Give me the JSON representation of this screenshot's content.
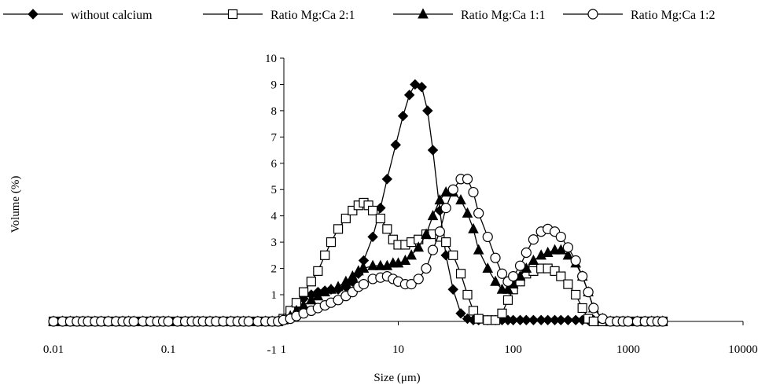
{
  "chart_data": {
    "type": "line",
    "title": "",
    "xlabel": "Size (μm)",
    "ylabel": "Volume (%)",
    "x_scale": "log",
    "xlim": [
      0.01,
      10000
    ],
    "ylim": [
      -1,
      10
    ],
    "x_ticks": [
      0.01,
      0.1,
      1,
      10,
      100,
      1000,
      10000
    ],
    "x_tick_labels": [
      "0.01",
      "0.1",
      "1",
      "10",
      "100",
      "1000",
      "10000"
    ],
    "y_ticks": [
      -1,
      1,
      2,
      3,
      4,
      5,
      6,
      7,
      8,
      9,
      10
    ],
    "y_tick_labels": [
      "-1",
      "1",
      "2",
      "3",
      "4",
      "5",
      "6",
      "7",
      "8",
      "9",
      "10"
    ],
    "grid": false,
    "legend_position": "top",
    "series": [
      {
        "name": "without calcium",
        "marker": "diamond-filled",
        "x": [
          0.01,
          0.012,
          0.014,
          0.016,
          0.018,
          0.02,
          0.023,
          0.026,
          0.03,
          0.035,
          0.04,
          0.045,
          0.05,
          0.06,
          0.07,
          0.08,
          0.09,
          0.1,
          0.12,
          0.14,
          0.16,
          0.18,
          0.2,
          0.23,
          0.26,
          0.3,
          0.35,
          0.4,
          0.45,
          0.5,
          0.6,
          0.7,
          0.8,
          0.9,
          1.0,
          1.15,
          1.3,
          1.5,
          1.75,
          2.0,
          2.3,
          2.6,
          3.0,
          3.5,
          4.0,
          4.5,
          5.0,
          6.0,
          7.0,
          8.0,
          9.5,
          11.0,
          12.5,
          14.0,
          16.0,
          18.0,
          20.0,
          23.0,
          26.0,
          30.0,
          35.0,
          40.0,
          45.0,
          50.0,
          60.0,
          70.0,
          80.0,
          90.0,
          100.0,
          115.0,
          130.0,
          150.0,
          175.0,
          200.0,
          230.0,
          260.0,
          300.0,
          350.0,
          400.0,
          450.0,
          500.0
        ],
        "y": [
          0,
          0,
          0,
          0,
          0,
          0,
          0,
          0,
          0,
          0,
          0,
          0,
          0,
          0,
          0,
          0,
          0,
          0,
          0,
          0,
          0,
          0,
          0,
          0,
          0,
          0,
          0,
          0,
          0,
          0,
          0,
          0,
          0,
          0,
          0.05,
          0.3,
          0.6,
          0.85,
          1.0,
          1.1,
          1.15,
          1.2,
          1.2,
          1.3,
          1.5,
          1.8,
          2.3,
          3.2,
          4.3,
          5.4,
          6.7,
          7.8,
          8.6,
          9.0,
          8.9,
          8.0,
          6.5,
          4.2,
          2.5,
          1.2,
          0.3,
          0.1,
          0.05,
          0.05,
          0.05,
          0.05,
          0.05,
          0.05,
          0.05,
          0.05,
          0.05,
          0.05,
          0.05,
          0.05,
          0.05,
          0.05,
          0.05,
          0.05,
          0.05,
          0.05,
          0.05
        ]
      },
      {
        "name": "Ratio Mg:Ca 2:1",
        "marker": "square-open",
        "x": [
          0.01,
          0.012,
          0.014,
          0.016,
          0.018,
          0.02,
          0.023,
          0.026,
          0.03,
          0.035,
          0.04,
          0.045,
          0.05,
          0.06,
          0.07,
          0.08,
          0.09,
          0.1,
          0.12,
          0.14,
          0.16,
          0.18,
          0.2,
          0.23,
          0.26,
          0.3,
          0.35,
          0.4,
          0.45,
          0.5,
          0.6,
          0.7,
          0.8,
          0.9,
          1.0,
          1.15,
          1.3,
          1.5,
          1.75,
          2.0,
          2.3,
          2.6,
          3.0,
          3.5,
          4.0,
          4.5,
          5.0,
          5.5,
          6.0,
          7.0,
          8.0,
          9.0,
          10.0,
          11.5,
          13.0,
          15.0,
          17.5,
          20.0,
          23.0,
          26.0,
          30.0,
          35.0,
          40.0,
          45.0,
          50.0,
          60.0,
          70.0,
          80.0,
          90.0,
          100.0,
          115.0,
          130.0,
          150.0,
          175.0,
          200.0,
          230.0,
          260.0,
          300.0,
          350.0,
          400.0,
          450.0,
          500.0,
          600.0,
          700.0,
          800.0,
          900.0,
          1000.0,
          1200.0,
          1400.0,
          1600.0,
          1800.0,
          2000.0
        ],
        "y": [
          0,
          0,
          0,
          0,
          0,
          0,
          0,
          0,
          0,
          0,
          0,
          0,
          0,
          0,
          0,
          0,
          0,
          0,
          0,
          0,
          0,
          0,
          0,
          0,
          0,
          0,
          0,
          0,
          0,
          0,
          0,
          0,
          0,
          0,
          0.1,
          0.4,
          0.7,
          1.1,
          1.5,
          1.9,
          2.5,
          3.0,
          3.5,
          3.9,
          4.2,
          4.4,
          4.5,
          4.4,
          4.2,
          3.9,
          3.5,
          3.1,
          2.9,
          2.9,
          3.0,
          3.1,
          3.3,
          3.3,
          3.2,
          3.0,
          2.5,
          1.8,
          1.0,
          0.4,
          0.1,
          0.05,
          0.05,
          0.3,
          0.8,
          1.2,
          1.5,
          1.8,
          1.9,
          2.0,
          2.0,
          1.9,
          1.7,
          1.4,
          1.0,
          0.5,
          0.1,
          0.0,
          0.0,
          0.0,
          0.0,
          0.0,
          0.0,
          0.0,
          0.0,
          0.0,
          0.0,
          0.0
        ]
      },
      {
        "name": "Ratio Mg:Ca 1:1",
        "marker": "triangle-filled",
        "x": [
          0.01,
          0.012,
          0.014,
          0.016,
          0.018,
          0.02,
          0.023,
          0.026,
          0.03,
          0.035,
          0.04,
          0.045,
          0.05,
          0.06,
          0.07,
          0.08,
          0.09,
          0.1,
          0.12,
          0.14,
          0.16,
          0.18,
          0.2,
          0.23,
          0.26,
          0.3,
          0.35,
          0.4,
          0.45,
          0.5,
          0.6,
          0.7,
          0.8,
          0.9,
          1.0,
          1.15,
          1.3,
          1.5,
          1.75,
          2.0,
          2.3,
          2.6,
          3.0,
          3.5,
          4.0,
          4.5,
          5.0,
          6.0,
          7.0,
          8.0,
          9.0,
          10.0,
          11.5,
          13.0,
          15.0,
          17.5,
          20.0,
          23.0,
          26.0,
          30.0,
          35.0,
          40.0,
          45.0,
          50.0,
          60.0,
          70.0,
          80.0,
          90.0,
          100.0,
          115.0,
          130.0,
          150.0,
          175.0,
          200.0,
          230.0,
          260.0,
          300.0,
          350.0,
          400.0,
          450.0,
          500.0,
          600.0,
          700.0,
          800.0,
          900.0,
          1000.0,
          1200.0,
          1400.0,
          1600.0,
          1800.0,
          2000.0
        ],
        "y": [
          0,
          0,
          0,
          0,
          0,
          0,
          0,
          0,
          0,
          0,
          0,
          0,
          0,
          0,
          0,
          0,
          0,
          0,
          0,
          0,
          0,
          0,
          0,
          0,
          0,
          0,
          0,
          0,
          0,
          0,
          0,
          0,
          0,
          0,
          0.05,
          0.2,
          0.4,
          0.6,
          0.8,
          0.95,
          1.1,
          1.2,
          1.3,
          1.5,
          1.7,
          1.9,
          2.0,
          2.1,
          2.1,
          2.1,
          2.2,
          2.2,
          2.3,
          2.5,
          2.8,
          3.3,
          4.0,
          4.6,
          4.9,
          4.9,
          4.6,
          4.1,
          3.5,
          2.7,
          2.0,
          1.5,
          1.2,
          1.2,
          1.4,
          1.7,
          2.0,
          2.3,
          2.5,
          2.6,
          2.7,
          2.7,
          2.5,
          2.2,
          1.7,
          1.1,
          0.5,
          0.1,
          0.0,
          0.0,
          0.0,
          0.0,
          0.0,
          0.0,
          0.0,
          0.0,
          0.0
        ]
      },
      {
        "name": "Ratio Mg:Ca 1:2",
        "marker": "circle-open",
        "x": [
          0.01,
          0.012,
          0.014,
          0.016,
          0.018,
          0.02,
          0.023,
          0.026,
          0.03,
          0.035,
          0.04,
          0.045,
          0.05,
          0.06,
          0.07,
          0.08,
          0.09,
          0.1,
          0.12,
          0.14,
          0.16,
          0.18,
          0.2,
          0.23,
          0.26,
          0.3,
          0.35,
          0.4,
          0.45,
          0.5,
          0.6,
          0.7,
          0.8,
          0.9,
          1.0,
          1.15,
          1.3,
          1.5,
          1.75,
          2.0,
          2.3,
          2.6,
          3.0,
          3.5,
          4.0,
          4.5,
          5.0,
          6.0,
          7.0,
          8.0,
          9.0,
          10.0,
          11.5,
          13.0,
          15.0,
          17.5,
          20.0,
          23.0,
          26.0,
          30.0,
          35.0,
          40.0,
          45.0,
          50.0,
          60.0,
          70.0,
          80.0,
          90.0,
          100.0,
          115.0,
          130.0,
          150.0,
          175.0,
          200.0,
          230.0,
          260.0,
          300.0,
          350.0,
          400.0,
          450.0,
          500.0,
          600.0,
          700.0,
          800.0,
          900.0,
          1000.0,
          1200.0,
          1400.0,
          1600.0,
          1800.0,
          2000.0
        ],
        "y": [
          0,
          0,
          0,
          0,
          0,
          0,
          0,
          0,
          0,
          0,
          0,
          0,
          0,
          0,
          0,
          0,
          0,
          0,
          0,
          0,
          0,
          0,
          0,
          0,
          0,
          0,
          0,
          0,
          0,
          0,
          0,
          0,
          0,
          0,
          0.05,
          0.1,
          0.2,
          0.3,
          0.4,
          0.5,
          0.6,
          0.7,
          0.8,
          0.95,
          1.1,
          1.3,
          1.4,
          1.6,
          1.65,
          1.7,
          1.6,
          1.5,
          1.4,
          1.4,
          1.6,
          2.0,
          2.7,
          3.4,
          4.3,
          5.0,
          5.4,
          5.4,
          4.9,
          4.1,
          3.2,
          2.4,
          1.8,
          1.5,
          1.7,
          2.1,
          2.6,
          3.1,
          3.4,
          3.5,
          3.4,
          3.2,
          2.8,
          2.3,
          1.7,
          1.1,
          0.5,
          0.1,
          0.0,
          0.0,
          0.0,
          0.0,
          0.0,
          0.0,
          0.0,
          0.0,
          0.0
        ]
      }
    ]
  }
}
